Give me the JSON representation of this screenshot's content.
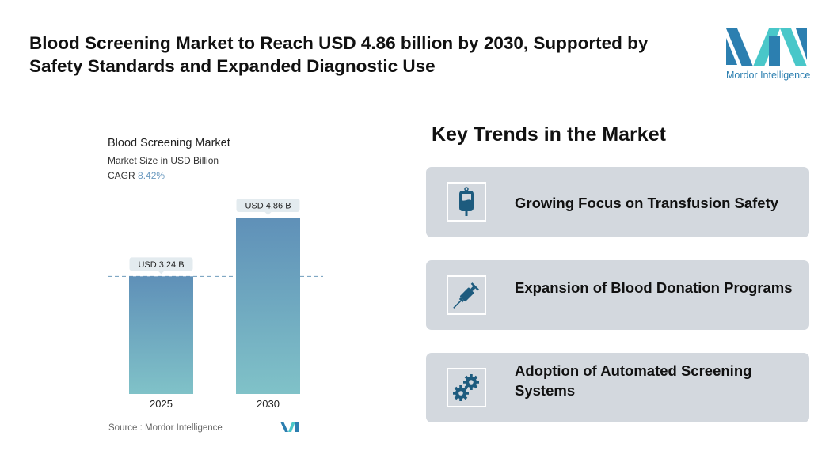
{
  "header": {
    "title": "Blood Screening Market to Reach USD 4.86 billion by 2030, Supported by Safety Standards and Expanded Diagnostic Use",
    "logo_text": "Mordor Intelligence"
  },
  "chart_data": {
    "type": "bar",
    "title": "Blood Screening Market",
    "subtitle": "Market Size in USD Billion",
    "cagr_label": "CAGR",
    "cagr_value": "8.42%",
    "categories": [
      "2025",
      "2030"
    ],
    "values": [
      3.24,
      4.86
    ],
    "data_labels": [
      "USD 3.24 B",
      "USD 4.86 B"
    ],
    "ylim": [
      0,
      4.86
    ],
    "reference_line": 3.24,
    "colors": {
      "top": "#5f90b8",
      "bottom": "#80c2c8"
    },
    "source": "Source :  Mordor Intelligence"
  },
  "trends": {
    "heading": "Key Trends in the Market",
    "items": [
      {
        "label": "Growing Focus on Transfusion Safety",
        "icon": "blood-bag-icon"
      },
      {
        "label": "Expansion of Blood Donation Programs",
        "icon": "syringe-icon"
      },
      {
        "label": "Adoption of Automated Screening Systems",
        "icon": "gears-icon"
      }
    ]
  }
}
